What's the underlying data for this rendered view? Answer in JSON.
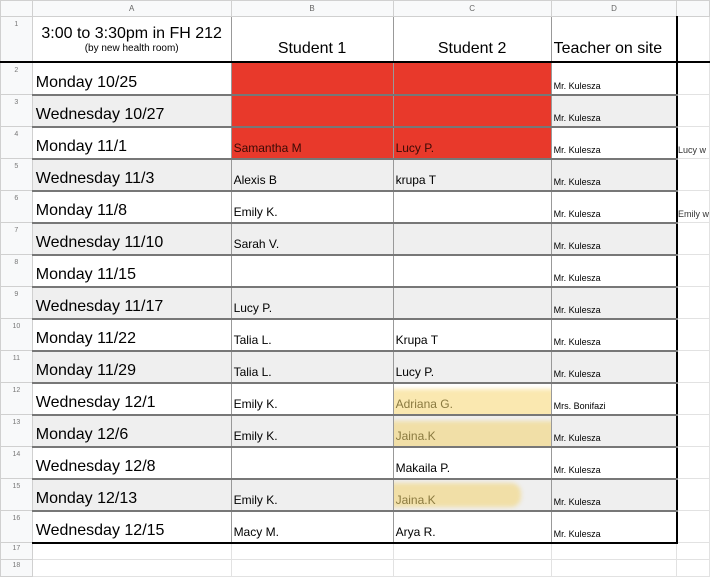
{
  "columns": [
    "A",
    "B",
    "C",
    "D"
  ],
  "header": {
    "title": "3:00 to 3:30pm in FH 212",
    "subtitle": "(by new health room)",
    "student1": "Student 1",
    "student2": "Student 2",
    "teacher": "Teacher on site"
  },
  "colors": {
    "red": "#e8392b",
    "highlight": "#f5cd50",
    "alt_row": "#efefef"
  },
  "rows": [
    {
      "n": "2",
      "date": "Monday 10/25",
      "s1": "",
      "s2": "",
      "t": "Mr. Kulesza",
      "e": "",
      "red": true
    },
    {
      "n": "3",
      "date": "Wednesday 10/27",
      "s1": "",
      "s2": "",
      "t": "Mr. Kulesza",
      "e": "",
      "red": true
    },
    {
      "n": "4",
      "date": "Monday 11/1",
      "s1": "Samantha M",
      "s2": "Lucy P.",
      "t": "Mr. Kulesza",
      "e": "Lucy w",
      "red": true
    },
    {
      "n": "5",
      "date": "Wednesday 11/3",
      "s1": "Alexis B",
      "s2": "krupa T",
      "t": "Mr. Kulesza",
      "e": ""
    },
    {
      "n": "6",
      "date": "Monday 11/8",
      "s1": "Emily K.",
      "s2": "",
      "t": "Mr. Kulesza",
      "e": "Emily w"
    },
    {
      "n": "7",
      "date": "Wednesday 11/10",
      "s1": "Sarah V.",
      "s2": "",
      "t": "Mr. Kulesza",
      "e": ""
    },
    {
      "n": "8",
      "date": "Monday 11/15",
      "s1": "",
      "s2": "",
      "t": "Mr. Kulesza",
      "e": ""
    },
    {
      "n": "9",
      "date": "Wednesday 11/17",
      "s1": "Lucy P.",
      "s2": "",
      "t": "Mr. Kulesza",
      "e": ""
    },
    {
      "n": "10",
      "date": "Monday 11/22",
      "s1": "Talia L.",
      "s2": "Krupa T",
      "t": "Mr. Kulesza",
      "e": ""
    },
    {
      "n": "11",
      "date": "Monday 11/29",
      "s1": "Talia L.",
      "s2": "Lucy P.",
      "t": "Mr. Kulesza",
      "e": ""
    },
    {
      "n": "12",
      "date": "Wednesday 12/1",
      "s1": "Emily K.",
      "s2": "Adriana G.",
      "t": "Mrs. Bonifazi",
      "e": "",
      "hl": 1
    },
    {
      "n": "13",
      "date": "Monday 12/6",
      "s1": "Emily K.",
      "s2": "Jaina.K",
      "t": "Mr. Kulesza",
      "e": "",
      "hl": 1
    },
    {
      "n": "14",
      "date": "Wednesday 12/8",
      "s1": "",
      "s2": "Makaila P.",
      "t": "Mr. Kulesza",
      "e": ""
    },
    {
      "n": "15",
      "date": "Monday 12/13",
      "s1": "Emily K.",
      "s2": "Jaina.K",
      "t": "Mr. Kulesza",
      "e": "",
      "hl": 2
    },
    {
      "n": "16",
      "date": "Wednesday 12/15",
      "s1": "Macy M.",
      "s2": "Arya R.",
      "t": "Mr. Kulesza",
      "e": ""
    }
  ],
  "empty_rows": [
    "17",
    "18"
  ]
}
